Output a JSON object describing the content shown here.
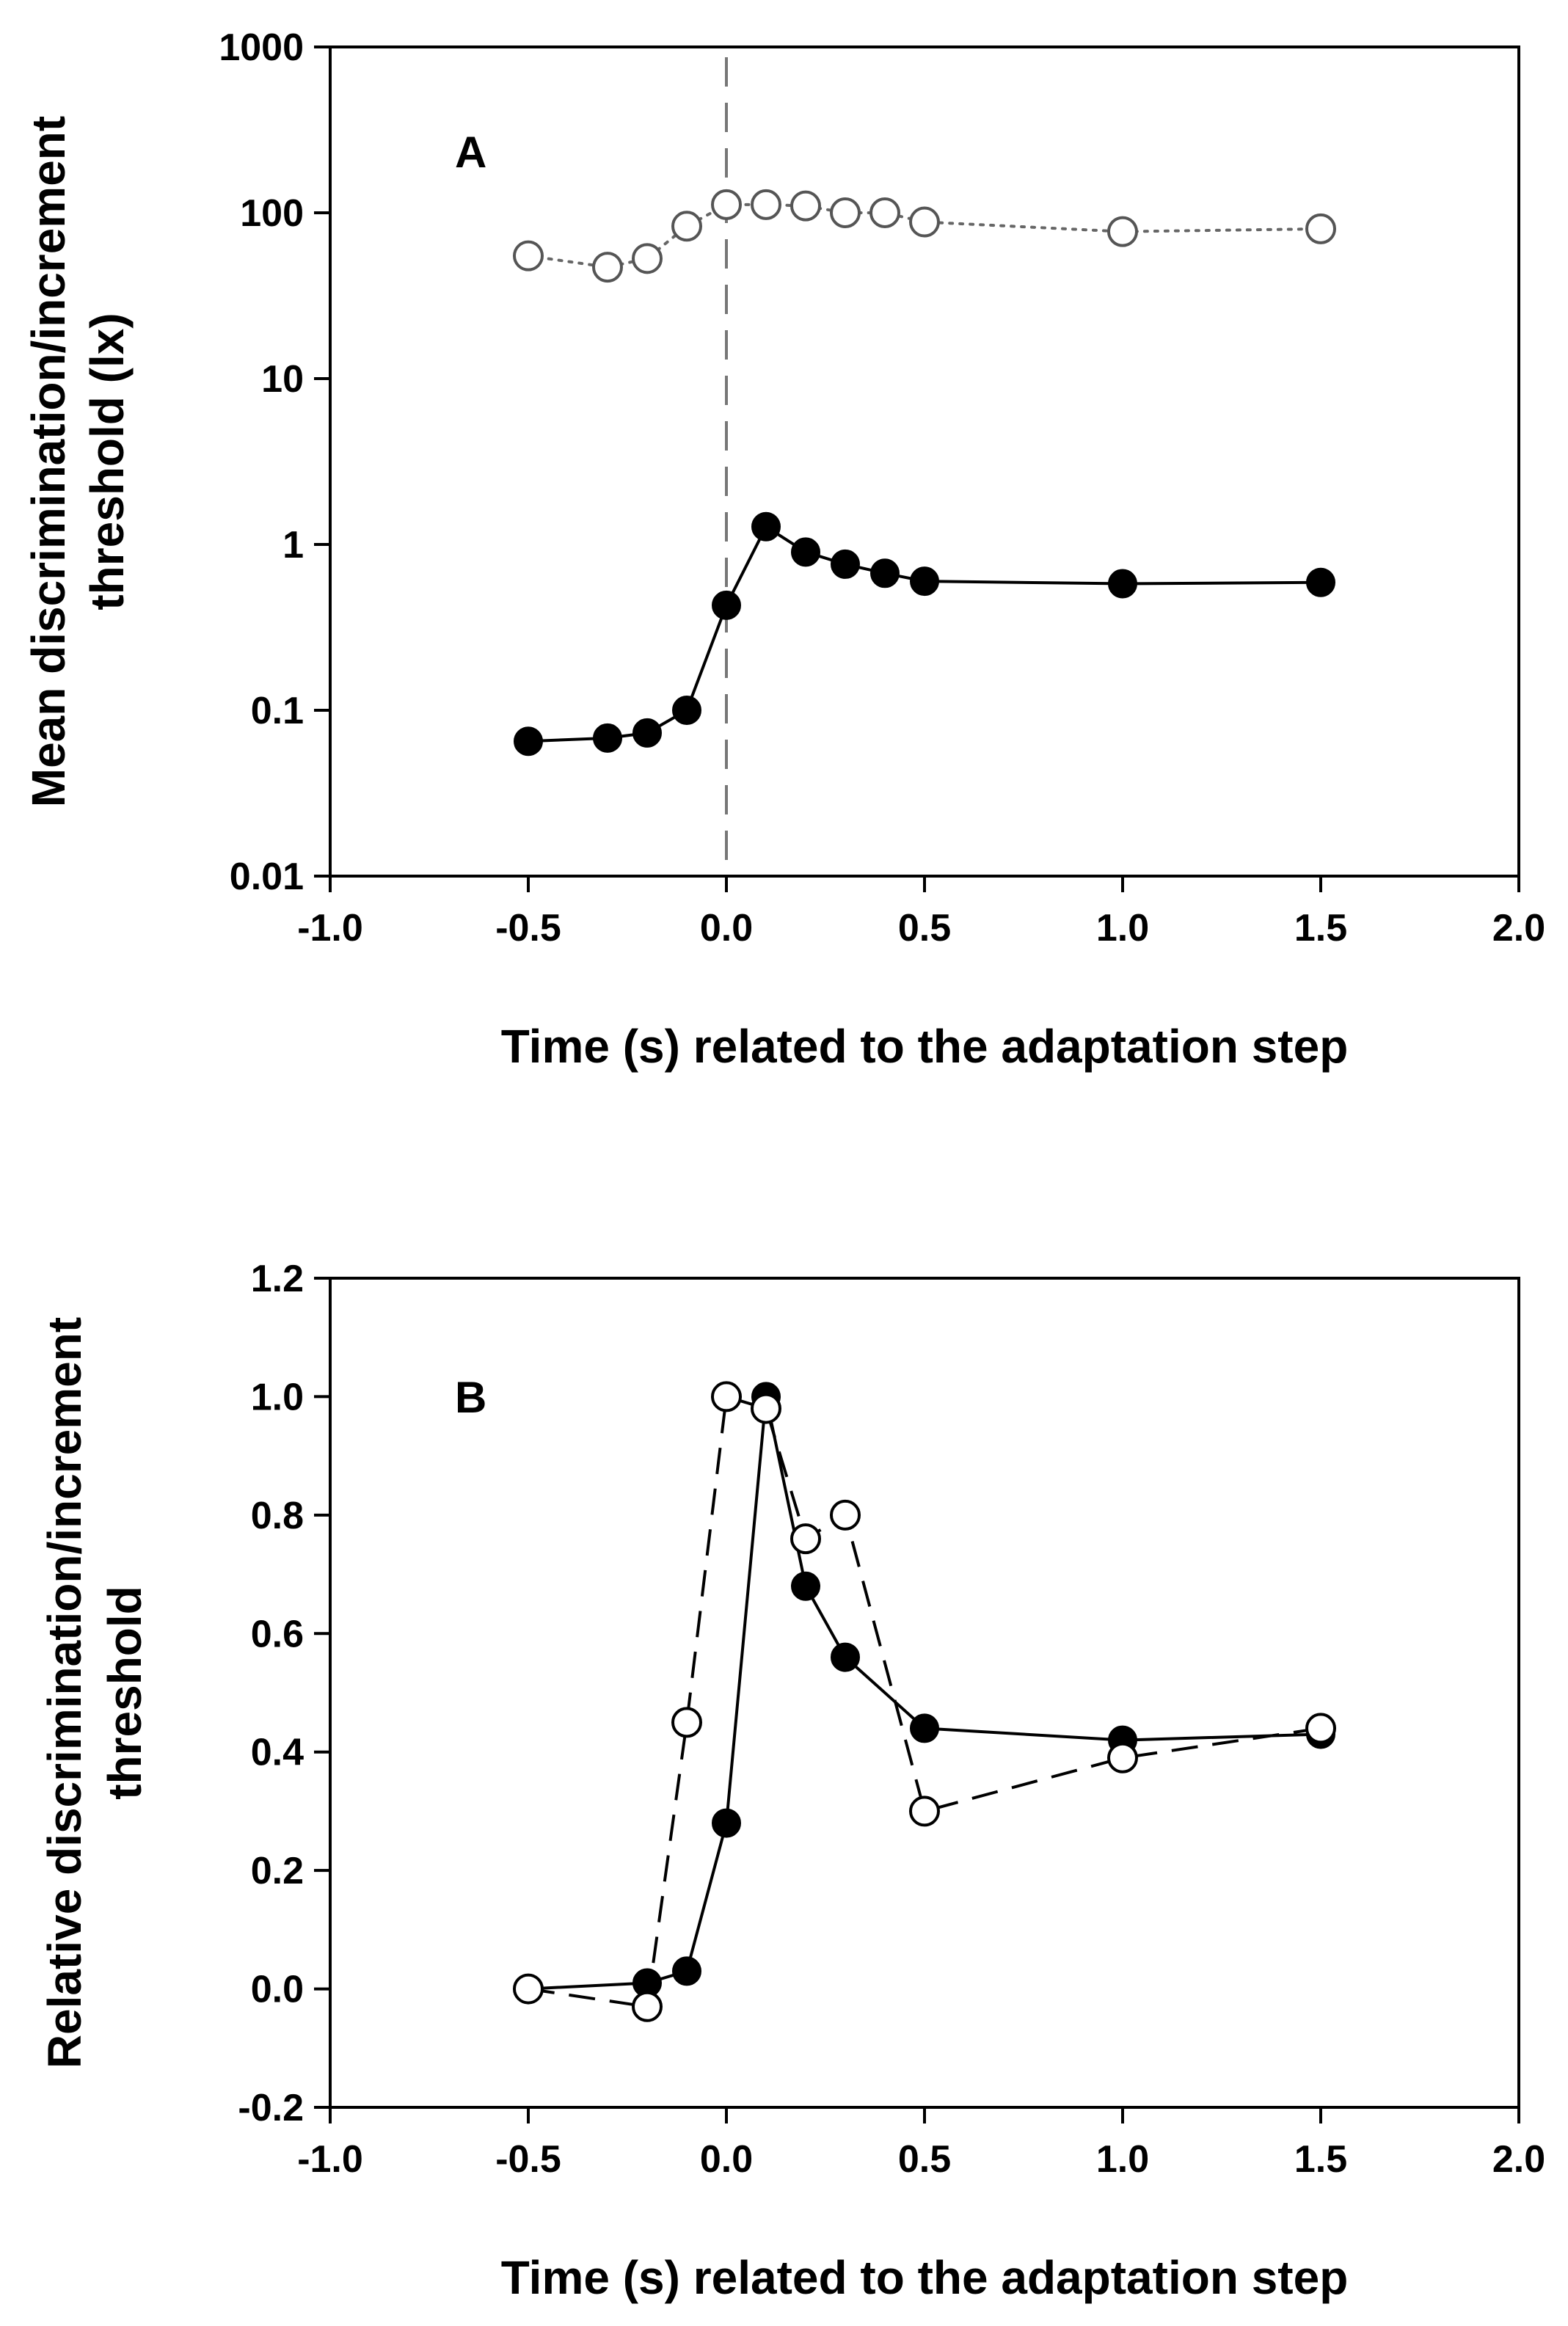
{
  "chart_data": [
    {
      "panel_label": "A",
      "type": "scatter",
      "scale": "log",
      "xlabel": "Time (s) related to the adaptation step",
      "ylabel_lines": [
        "Mean discrimination/increment",
        "threshold (lx)"
      ],
      "xlim": [
        -1.0,
        2.0
      ],
      "ylim": [
        0.01,
        1000
      ],
      "xticks": [
        -1.0,
        -0.5,
        0.0,
        0.5,
        1.0,
        1.5,
        2.0
      ],
      "xtick_labels": [
        "-1.0",
        "-0.5",
        "0.0",
        "0.5",
        "1.0",
        "1.5",
        "2.0"
      ],
      "yticks": [
        0.01,
        0.1,
        1,
        10,
        100,
        1000
      ],
      "ytick_labels": [
        "0.01",
        "0.1",
        "1",
        "10",
        "100",
        "1000"
      ],
      "reference_line_x": 0.0,
      "series": [
        {
          "name": "increment threshold (open circles)",
          "marker": "open-circle",
          "line": "dotted",
          "color": "#666666",
          "x": [
            -0.5,
            -0.3,
            -0.2,
            -0.1,
            0.0,
            0.1,
            0.2,
            0.3,
            0.4,
            0.5,
            1.0,
            1.5
          ],
          "y": [
            55,
            47,
            53,
            83,
            112,
            112,
            110,
            100,
            100,
            88,
            77,
            80
          ]
        },
        {
          "name": "discrimination threshold (filled circles)",
          "marker": "filled-circle",
          "line": "solid",
          "color": "#000000",
          "x": [
            -0.5,
            -0.3,
            -0.2,
            -0.1,
            0.0,
            0.1,
            0.2,
            0.3,
            0.4,
            0.5,
            1.0,
            1.5
          ],
          "y": [
            0.065,
            0.068,
            0.073,
            0.1,
            0.43,
            1.28,
            0.9,
            0.76,
            0.67,
            0.6,
            0.58,
            0.59
          ]
        }
      ]
    },
    {
      "panel_label": "B",
      "type": "scatter",
      "scale": "linear",
      "xlabel": "Time (s) related to the adaptation step",
      "ylabel_lines": [
        "Relative discrimination/increment",
        "threshold"
      ],
      "xlim": [
        -1.0,
        2.0
      ],
      "ylim": [
        -0.2,
        1.2
      ],
      "xticks": [
        -1.0,
        -0.5,
        0.0,
        0.5,
        1.0,
        1.5,
        2.0
      ],
      "xtick_labels": [
        "-1.0",
        "-0.5",
        "0.0",
        "0.5",
        "1.0",
        "1.5",
        "2.0"
      ],
      "yticks": [
        -0.2,
        0.0,
        0.2,
        0.4,
        0.6,
        0.8,
        1.0,
        1.2
      ],
      "ytick_labels": [
        "-0.2",
        "0.0",
        "0.2",
        "0.4",
        "0.6",
        "0.8",
        "1.0",
        "1.2"
      ],
      "series": [
        {
          "name": "discrimination threshold (filled circles)",
          "marker": "filled-circle",
          "line": "solid",
          "color": "#000000",
          "x": [
            -0.5,
            -0.2,
            -0.1,
            0.0,
            0.1,
            0.2,
            0.3,
            0.5,
            1.0,
            1.5
          ],
          "y": [
            0.0,
            0.01,
            0.03,
            0.28,
            1.0,
            0.68,
            0.56,
            0.44,
            0.42,
            0.43
          ]
        },
        {
          "name": "increment threshold (open circles)",
          "marker": "open-circle",
          "line": "dashed",
          "color": "#000000",
          "x": [
            -0.5,
            -0.2,
            -0.1,
            0.0,
            0.1,
            0.2,
            0.3,
            0.5,
            1.0,
            1.5
          ],
          "y": [
            0.0,
            -0.03,
            0.45,
            1.0,
            0.98,
            0.76,
            0.8,
            0.3,
            0.39,
            0.44
          ]
        }
      ]
    }
  ]
}
